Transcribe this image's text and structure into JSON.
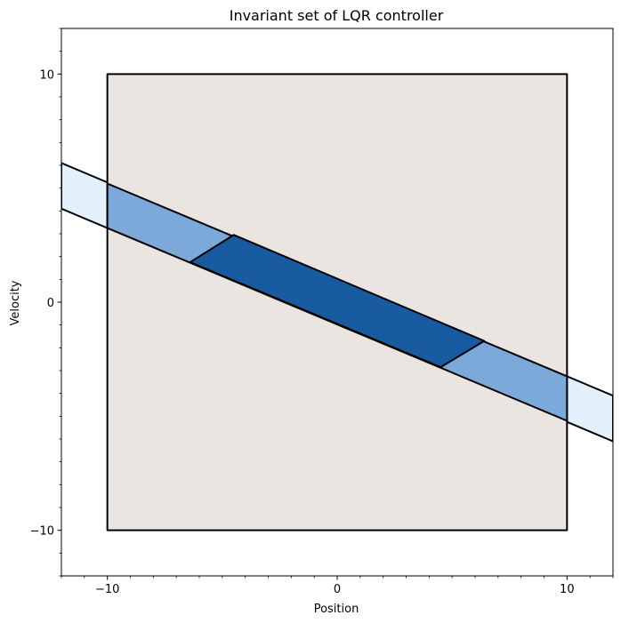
{
  "chart_data": {
    "type": "polygon-regions",
    "title": "Invariant set of LQR controller",
    "xlabel": "Position",
    "ylabel": "Velocity",
    "xlim": [
      -12,
      12
    ],
    "ylim": [
      -12,
      12
    ],
    "xticks": [
      -10,
      0,
      10
    ],
    "yticks": [
      -10,
      0,
      10
    ],
    "minor_tick_step": 1,
    "regions": [
      {
        "name": "",
        "color": "#e3f1fd",
        "vertices": [
          [
            -12,
            6.1
          ],
          [
            12,
            -4.1
          ],
          [
            12,
            -6.1
          ],
          [
            -12,
            4.1
          ]
        ]
      },
      {
        "name": "",
        "color": "#eae5e1",
        "vertices": [
          [
            -10,
            -10
          ],
          [
            10,
            -10
          ],
          [
            10,
            10
          ],
          [
            -10,
            10
          ]
        ]
      },
      {
        "name": "",
        "color": "#7ba9da",
        "vertices": [
          [
            -10,
            5.2
          ],
          [
            10,
            -3.25
          ],
          [
            10,
            -5.2
          ],
          [
            -10,
            3.25
          ]
        ]
      },
      {
        "name": "",
        "color": "#185ba1",
        "vertices": [
          [
            -4.5,
            2.95
          ],
          [
            6.4,
            -1.7
          ],
          [
            4.5,
            -2.85
          ],
          [
            -6.4,
            1.75
          ]
        ]
      }
    ]
  }
}
